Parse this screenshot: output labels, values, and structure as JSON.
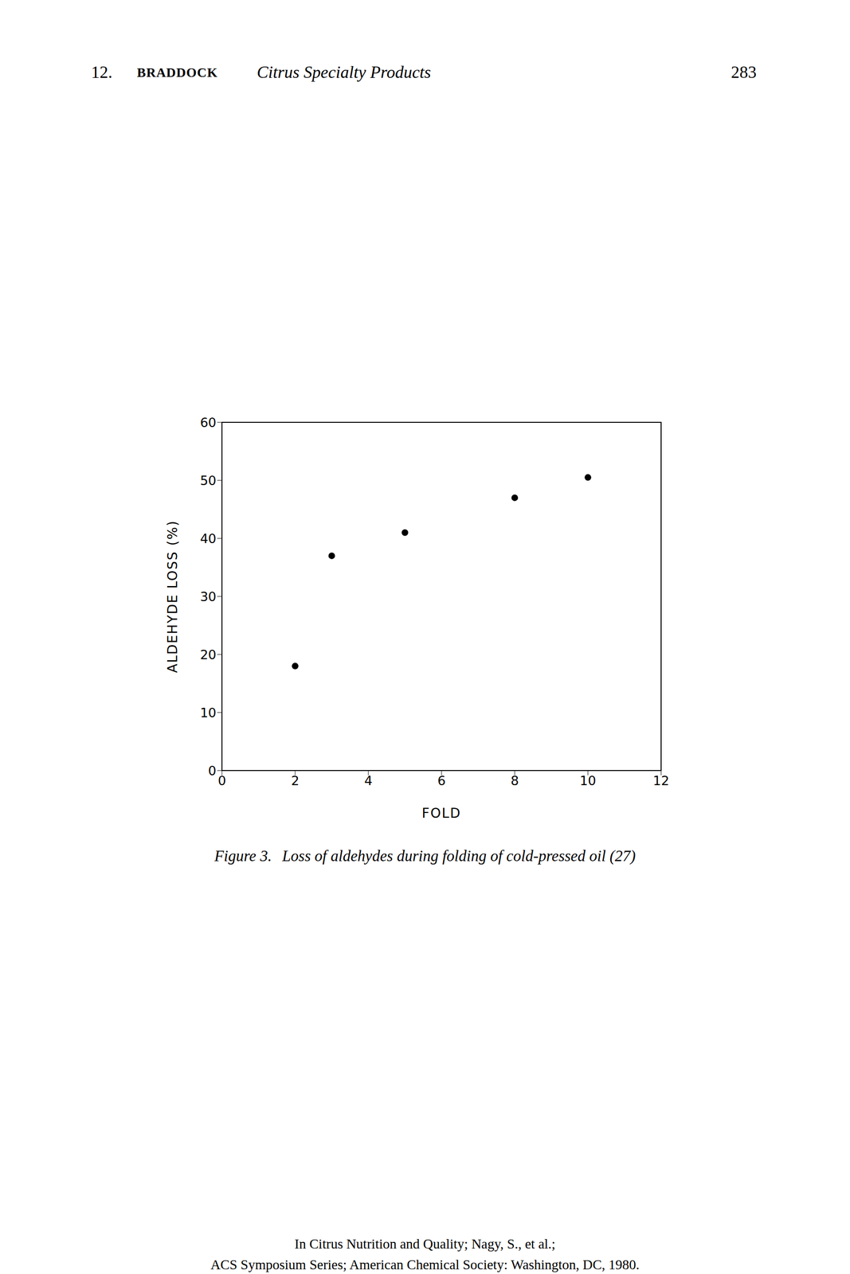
{
  "header": {
    "chapter": "12.",
    "author": "BRADDOCK",
    "title": "Citrus Specialty Products",
    "page": "283"
  },
  "chart_data": {
    "type": "scatter",
    "x_label": "FOLD",
    "y_label": "ALDEHYDE LOSS (%)",
    "x": [
      2,
      3,
      5,
      8,
      10
    ],
    "values": [
      18,
      37,
      41,
      47,
      50.5
    ],
    "color": "#000000",
    "marker": "circle",
    "xlim": [
      0,
      12
    ],
    "xticks": [
      0,
      2,
      4,
      6,
      8,
      10,
      12
    ],
    "ylim": [
      0,
      60
    ],
    "yticks": [
      0,
      10,
      20,
      30,
      40,
      50,
      60
    ],
    "grid": false
  },
  "caption": {
    "label": "Figure 3.",
    "text": "Loss of aldehydes during folding of cold-pressed oil (27)"
  },
  "footer": [
    "In Citrus Nutrition and Quality; Nagy, S., et al.;",
    "ACS Symposium Series; American Chemical Society: Washington, DC, 1980."
  ]
}
